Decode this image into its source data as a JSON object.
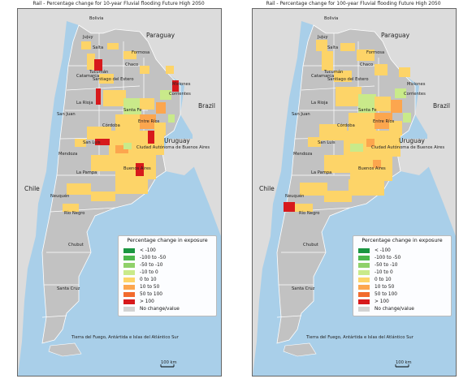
{
  "panels": [
    {
      "title": "Rail - Percentage change for 10-year Fluvial flooding Future High 2050",
      "labels": {
        "bolivia": "Bolivia",
        "paraguay": "Paraguay",
        "brazil": "Brazil",
        "uruguay": "Uruguay",
        "chile": "Chile",
        "jujuy": "Jujuy",
        "salta": "Salta",
        "formosa": "Formosa",
        "chaco": "Chaco",
        "tucuman": "Tucumán",
        "catamarca": "Catamarca",
        "santiago": "Santiago del Estero",
        "misiones": "Misiones",
        "corrientes": "Corrientes",
        "larioja": "La Rioja",
        "sanjuan": "San Juan",
        "santafe": "Santa Fe",
        "cordoba": "Córdoba",
        "entrerios": "Entre Ríos",
        "sanluis": "San Luis",
        "mendoza": "Mendoza",
        "caba": "Ciudad Autónoma de Buenos Aires",
        "lapampa": "La Pampa",
        "buenosaires": "Buenos Aires",
        "neuquen": "Neuquén",
        "rionegro": "Río Negro",
        "chubut": "Chubut",
        "santacruz": "Santa Cruz",
        "tierradelfuego": "Tierra del Fuego, Antártida e Islas del Atlántico Sur",
        "scalebar": "100 km"
      }
    },
    {
      "title": "Rail - Percentage change for 100-year Fluvial flooding Future High 2050",
      "labels": {
        "bolivia": "Bolivia",
        "paraguay": "Paraguay",
        "brazil": "Brazil",
        "uruguay": "Uruguay",
        "chile": "Chile",
        "jujuy": "Jujuy",
        "salta": "Salta",
        "formosa": "Formosa",
        "chaco": "Chaco",
        "tucuman": "Tucumán",
        "catamarca": "Catamarca",
        "santiago": "Santiago del Estero",
        "misiones": "Misiones",
        "corrientes": "Corrientes",
        "larioja": "La Rioja",
        "sanjuan": "San Juan",
        "santafe": "Santa Fe",
        "cordoba": "Córdoba",
        "entrerios": "Entre Ríos",
        "sanluis": "San Luis",
        "mendoza": "Mendoza",
        "caba": "Ciudad Autónoma de Buenos Aires",
        "lapampa": "La Pampa",
        "buenosaires": "Buenos Aires",
        "neuquen": "Neuquén",
        "rionegro": "Río Negro",
        "chubut": "Chubut",
        "santacruz": "Santa Cruz",
        "tierradelfuego": "Tierra del Fuego, Antártida e Islas del Atlántico Sur",
        "scalebar": "100 km"
      }
    }
  ],
  "legend": {
    "title": "Percentage change in exposure",
    "items": [
      {
        "label": "< -100",
        "color": "#1a9641"
      },
      {
        "label": "-100 to -50",
        "color": "#4cb84c"
      },
      {
        "label": "-50 to -10",
        "color": "#8fd16a"
      },
      {
        "label": "-10 to 0",
        "color": "#c9ea8a"
      },
      {
        "label": "0 to 10",
        "color": "#fdd468"
      },
      {
        "label": "10 to 50",
        "color": "#fca64e"
      },
      {
        "label": "50 to 100",
        "color": "#f26b2d"
      },
      {
        "label": "> 100",
        "color": "#d7191c"
      },
      {
        "label": "No change/value",
        "color": "#d3d3d3"
      }
    ]
  },
  "colors": {
    "ocean": "#a9cfe9",
    "argentina": "#c2c2c2",
    "neighbors": "#dcdcdc",
    "borders": "#ffffff"
  }
}
